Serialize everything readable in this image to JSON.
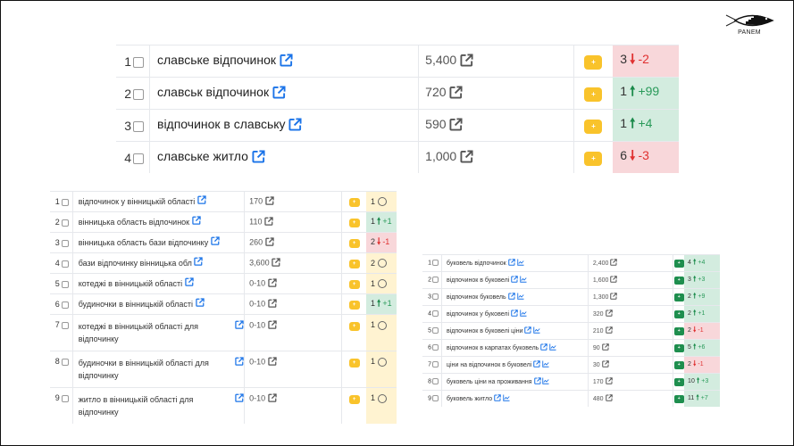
{
  "brand": {
    "name": "PANEM",
    "logo_icon": "fish-city-logo-icon"
  },
  "colors": {
    "plus_yellow": "#f9c32b",
    "plus_green": "#1e8e4e",
    "up_bg": "#d3ecdf",
    "down_bg": "#f8d7da",
    "neutral_bg": "#fff3d1",
    "link_blue": "#1a73e8"
  },
  "table_slavske": {
    "rows": [
      {
        "n": "1",
        "keyword": "славське відпочинок",
        "volume": "5,400",
        "position": "3",
        "delta": "-2",
        "dir": "down",
        "plus": "+"
      },
      {
        "n": "2",
        "keyword": "славськ відпочинок",
        "volume": "720",
        "position": "1",
        "delta": "+99",
        "dir": "up",
        "plus": "+"
      },
      {
        "n": "3",
        "keyword": "відпочинок в славську",
        "volume": "590",
        "position": "1",
        "delta": "+4",
        "dir": "up",
        "plus": "+"
      },
      {
        "n": "4",
        "keyword": "славське житло",
        "volume": "1,000",
        "position": "6",
        "delta": "-3",
        "dir": "down",
        "plus": "+"
      }
    ]
  },
  "table_vinnytsia": {
    "rows": [
      {
        "n": "1",
        "keyword": "відпочинок у вінницькій області",
        "volume": "170",
        "position": "1",
        "delta": "",
        "dir": "same",
        "plus": "+"
      },
      {
        "n": "2",
        "keyword": "вінницька область відпочинок",
        "volume": "110",
        "position": "1",
        "delta": "+1",
        "dir": "up",
        "plus": "+"
      },
      {
        "n": "3",
        "keyword": "вінницька область бази відпочинку",
        "volume": "260",
        "position": "2",
        "delta": "-1",
        "dir": "down",
        "plus": "+"
      },
      {
        "n": "4",
        "keyword": "бази відпочинку вінницька обл",
        "volume": "3,600",
        "position": "2",
        "delta": "",
        "dir": "same",
        "plus": "+"
      },
      {
        "n": "5",
        "keyword": "котеджі в вінницькій області",
        "volume": "0-10",
        "position": "1",
        "delta": "",
        "dir": "same",
        "plus": "+"
      },
      {
        "n": "6",
        "keyword": "будиночки в вінницькій області",
        "volume": "0-10",
        "position": "1",
        "delta": "+1",
        "dir": "up",
        "plus": "+"
      },
      {
        "n": "7",
        "keyword": "котеджі в вінницькій області для відпочинку",
        "volume": "0-10",
        "position": "1",
        "delta": "",
        "dir": "same",
        "plus": "+"
      },
      {
        "n": "8",
        "keyword": "будиночки в вінницькій області для відпочинку",
        "volume": "0-10",
        "position": "1",
        "delta": "",
        "dir": "same",
        "plus": "+"
      },
      {
        "n": "9",
        "keyword": "житло в вінницькій області для відпочинку",
        "volume": "0-10",
        "position": "1",
        "delta": "",
        "dir": "same",
        "plus": "+"
      }
    ]
  },
  "table_bukovel": {
    "rows": [
      {
        "n": "1",
        "keyword": "буковель відпочинок",
        "volume": "2,400",
        "position": "4",
        "delta": "+4",
        "dir": "up",
        "plus": "+"
      },
      {
        "n": "2",
        "keyword": "відпочинок в буковелі",
        "volume": "1,600",
        "position": "3",
        "delta": "+3",
        "dir": "up",
        "plus": "+"
      },
      {
        "n": "3",
        "keyword": "відпочинок буковель",
        "volume": "1,300",
        "position": "2",
        "delta": "+9",
        "dir": "up",
        "plus": "+"
      },
      {
        "n": "4",
        "keyword": "відпочинок у буковелі",
        "volume": "320",
        "position": "2",
        "delta": "+1",
        "dir": "up",
        "plus": "+"
      },
      {
        "n": "5",
        "keyword": "відпочинок в буковелі ціни",
        "volume": "210",
        "position": "2",
        "delta": "-1",
        "dir": "down",
        "plus": "+"
      },
      {
        "n": "6",
        "keyword": "відпочинок в карпатах буковель",
        "volume": "90",
        "position": "5",
        "delta": "+6",
        "dir": "up",
        "plus": "+"
      },
      {
        "n": "7",
        "keyword": "ціни на відпочинок в буковелі",
        "volume": "30",
        "position": "2",
        "delta": "-1",
        "dir": "down",
        "plus": "+"
      },
      {
        "n": "8",
        "keyword": "буковель ціни на проживання",
        "volume": "170",
        "position": "10",
        "delta": "+3",
        "dir": "up",
        "plus": "+"
      },
      {
        "n": "9",
        "keyword": "буковель житло",
        "volume": "480",
        "position": "11",
        "delta": "+7",
        "dir": "up",
        "plus": "+"
      }
    ]
  }
}
